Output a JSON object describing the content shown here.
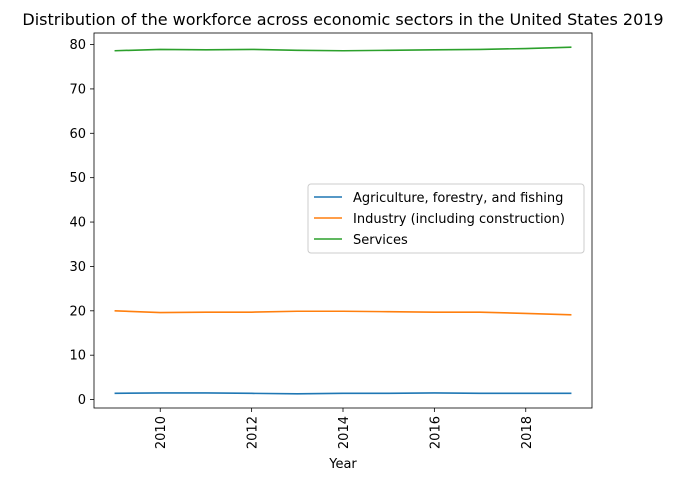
{
  "chart_data": {
    "type": "line",
    "title": "Distribution of the workforce across economic sectors in the United States 2019",
    "xlabel": "Year",
    "ylabel": "",
    "x": [
      2009,
      2010,
      2011,
      2012,
      2013,
      2014,
      2015,
      2016,
      2017,
      2018,
      2019
    ],
    "xlim": [
      2008.55,
      2019.45
    ],
    "ylim": [
      -1.9,
      82.6
    ],
    "x_ticks": [
      2010,
      2012,
      2014,
      2016,
      2018
    ],
    "y_ticks": [
      0,
      10,
      20,
      30,
      40,
      50,
      60,
      70,
      80
    ],
    "grid": false,
    "legend_position": "center-right",
    "series": [
      {
        "name": "Agriculture, forestry, and fishing",
        "color": "#1f77b4",
        "values": [
          1.4,
          1.5,
          1.5,
          1.4,
          1.3,
          1.4,
          1.4,
          1.5,
          1.4,
          1.4,
          1.4
        ]
      },
      {
        "name": "Industry (including construction)",
        "color": "#ff7f0e",
        "values": [
          20.0,
          19.6,
          19.7,
          19.7,
          19.9,
          19.9,
          19.8,
          19.7,
          19.7,
          19.4,
          19.1
        ]
      },
      {
        "name": "Services",
        "color": "#2ca02c",
        "values": [
          78.6,
          78.9,
          78.8,
          78.9,
          78.7,
          78.6,
          78.7,
          78.8,
          78.9,
          79.1,
          79.4
        ]
      }
    ]
  }
}
